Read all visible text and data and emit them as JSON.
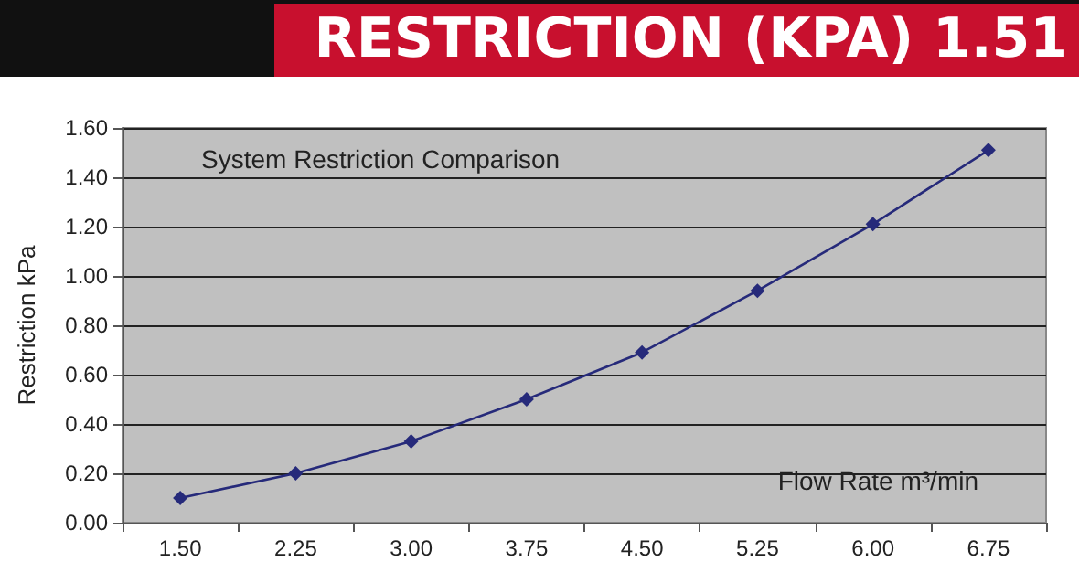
{
  "chart_data": {
    "type": "line",
    "title": "System Restriction Comparison",
    "subtitle": "RESTRICTION (KPA) 1.51",
    "xlabel": "Flow Rate m³/min",
    "ylabel": "Restriction kPa",
    "categories": [
      "1.50",
      "2.25",
      "3.00",
      "3.75",
      "4.50",
      "5.25",
      "6.00",
      "6.75"
    ],
    "series": [
      {
        "color": "#262a7a",
        "values": [
          0.1,
          0.2,
          0.33,
          0.5,
          0.69,
          0.94,
          1.21,
          1.51
        ]
      }
    ],
    "ylim": [
      0,
      1.6
    ],
    "yticks": [
      {
        "value": 0,
        "label": "0.00"
      },
      {
        "value": 0.2,
        "label": "0.20"
      },
      {
        "value": 0.4,
        "label": "0.40"
      },
      {
        "value": 0.6,
        "label": "0.60"
      },
      {
        "value": 0.8,
        "label": "0.80"
      },
      {
        "value": 1.0,
        "label": "1.00"
      },
      {
        "value": 1.2,
        "label": "1.20"
      },
      {
        "value": 1.4,
        "label": "1.40"
      },
      {
        "value": 1.6,
        "label": "1.60"
      }
    ],
    "grid": "y",
    "marker": "diamond",
    "line_style": "solid"
  }
}
